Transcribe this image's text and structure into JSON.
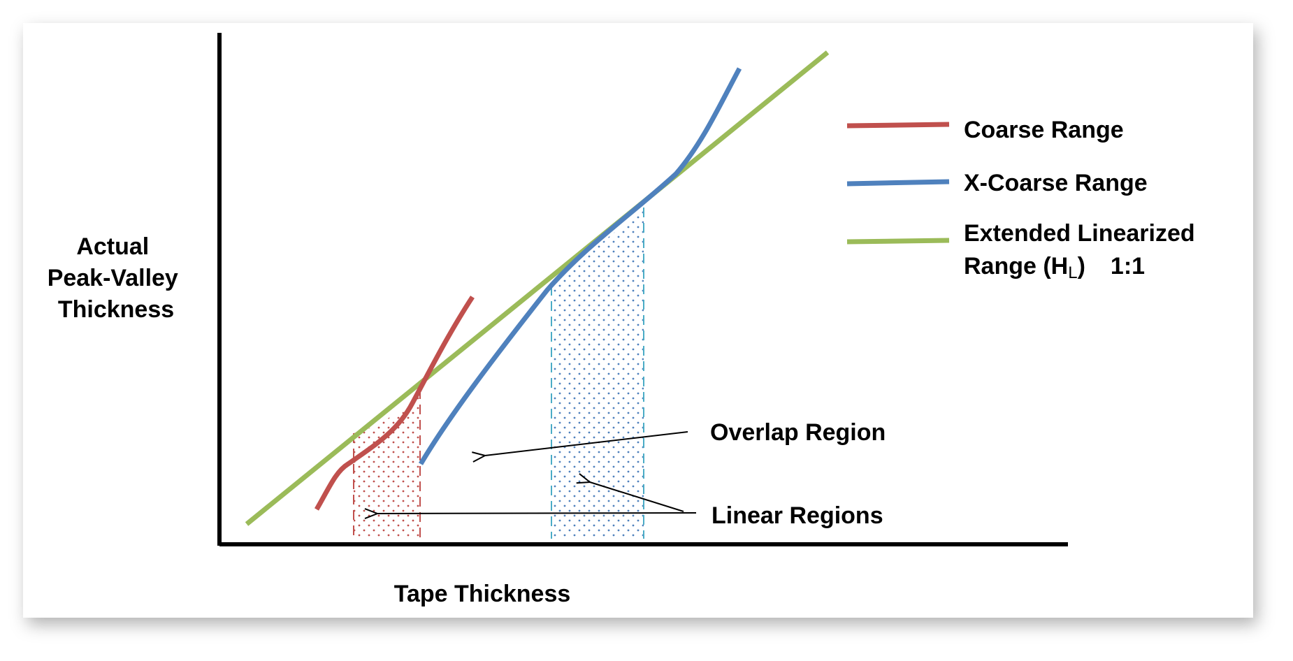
{
  "y_axis_label": [
    "Actual",
    "Peak-Valley",
    "Thickness"
  ],
  "x_axis_label": "Tape Thickness",
  "legend": {
    "coarse": "Coarse Range",
    "x_coarse": "X-Coarse Range",
    "extended": {
      "line1": "Extended Linearized",
      "line2_start": "Range (H",
      "subscript": "L",
      "line2_close": ")",
      "ratio": "1:1"
    }
  },
  "annotations": {
    "overlap": "Overlap Region",
    "linear": "Linear Regions"
  }
}
